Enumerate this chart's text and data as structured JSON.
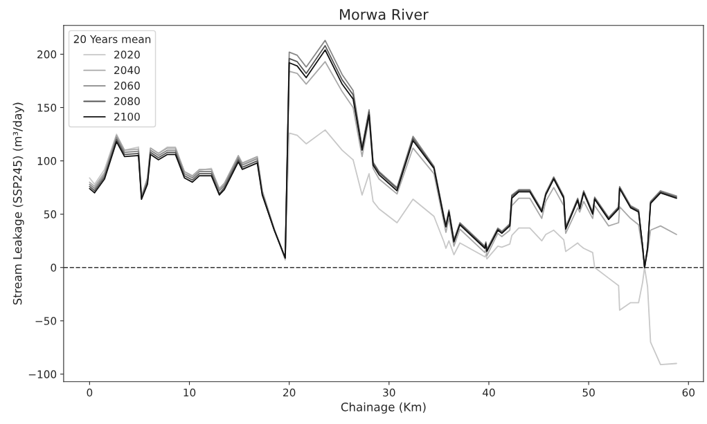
{
  "chart_data": {
    "type": "line",
    "title": "Morwa River",
    "xlabel": "Chainage (Km)",
    "ylabel": "Stream Leakage (SSP245) (m³/day)",
    "legend_title": "20 Years mean",
    "legend": "top left",
    "grid": false,
    "line_style": "solid",
    "x": [
      0,
      0.5,
      1.5,
      2.7,
      3.5,
      4.9,
      5.2,
      5.8,
      6.1,
      6.9,
      7.8,
      8.6,
      9.5,
      10.3,
      11,
      12.2,
      13,
      13.5,
      14.9,
      15.3,
      16.8,
      17.3,
      18.5,
      19.6,
      20,
      20.8,
      21.7,
      23.6,
      25.3,
      26.4,
      27.3,
      28,
      28.4,
      29,
      30.8,
      32.4,
      34.5,
      35.5,
      35.7,
      36,
      36.5,
      37.1,
      39.6,
      39.7,
      39.8,
      40.9,
      41.3,
      42.1,
      42.3,
      43,
      44.1,
      45.3,
      45.7,
      46.5,
      47.5,
      47.7,
      48.9,
      49.1,
      49.5,
      50.4,
      50.6,
      52,
      53,
      53.1,
      54.2,
      55,
      55.4,
      55.6,
      55.9,
      56.2,
      57.2,
      58.8
    ],
    "series": [
      {
        "name": "2020",
        "color": "#c8c8c8",
        "values": [
          84,
          78,
          92,
          125,
          110,
          113,
          66,
          84,
          112,
          107,
          113,
          113,
          90,
          85,
          91,
          93,
          72,
          78,
          104,
          97,
          103,
          72,
          36,
          7,
          126,
          124,
          116,
          129,
          110,
          101,
          68,
          88,
          62,
          55,
          42,
          64,
          48,
          24,
          18,
          25,
          12,
          23,
          10,
          12,
          8,
          20,
          19,
          22,
          30,
          37,
          37,
          25,
          31,
          35,
          26,
          15,
          23,
          21,
          18,
          14,
          0,
          -10,
          -17,
          -40,
          -33,
          -33,
          -14,
          0,
          -18,
          -70,
          -91,
          -90
        ]
      },
      {
        "name": "2040",
        "color": "#a8a8a8",
        "values": [
          80,
          76,
          89,
          124,
          110,
          111,
          67,
          84,
          112,
          107,
          112,
          112,
          90,
          86,
          92,
          92,
          74,
          79,
          105,
          98,
          104,
          72,
          36,
          8,
          184,
          182,
          172,
          193,
          165,
          150,
          104,
          140,
          93,
          83,
          69,
          112,
          88,
          42,
          33,
          46,
          20,
          36,
          14,
          18,
          11,
          32,
          29,
          35,
          58,
          65,
          65,
          46,
          62,
          75,
          58,
          32,
          56,
          52,
          62,
          46,
          58,
          39,
          42,
          57,
          46,
          40,
          16,
          0,
          15,
          35,
          39,
          31
        ]
      },
      {
        "name": "2060",
        "color": "#888888",
        "values": [
          78,
          74,
          87,
          122,
          108,
          109,
          66,
          82,
          110,
          105,
          110,
          110,
          88,
          84,
          90,
          90,
          72,
          77,
          103,
          96,
          102,
          70,
          36,
          9,
          202,
          199,
          188,
          213,
          181,
          166,
          113,
          148,
          99,
          90,
          75,
          123,
          95,
          48,
          40,
          54,
          26,
          42,
          20,
          24,
          17,
          37,
          34,
          41,
          68,
          73,
          73,
          54,
          70,
          85,
          67,
          38,
          65,
          57,
          72,
          52,
          66,
          47,
          57,
          76,
          58,
          54,
          20,
          0,
          19,
          62,
          72,
          67
        ]
      },
      {
        "name": "2080",
        "color": "#555555",
        "values": [
          76,
          72,
          85,
          120,
          106,
          107,
          65,
          80,
          108,
          103,
          108,
          108,
          86,
          82,
          88,
          88,
          69,
          75,
          101,
          94,
          100,
          69,
          35,
          9,
          196,
          193,
          182,
          208,
          176,
          162,
          112,
          146,
          98,
          89,
          74,
          121,
          94,
          47,
          39,
          53,
          25,
          41,
          19,
          23,
          16,
          36,
          33,
          40,
          67,
          72,
          72,
          53,
          69,
          84,
          66,
          37,
          64,
          56,
          71,
          51,
          65,
          46,
          56,
          75,
          57,
          53,
          20,
          0,
          18,
          61,
          71,
          66
        ]
      },
      {
        "name": "2100",
        "color": "#111111",
        "values": [
          74,
          70,
          83,
          118,
          104,
          105,
          64,
          78,
          106,
          101,
          106,
          106,
          84,
          80,
          86,
          86,
          68,
          73,
          99,
          92,
          98,
          68,
          35,
          9,
          192,
          189,
          178,
          204,
          172,
          158,
          110,
          143,
          96,
          87,
          72,
          119,
          93,
          46,
          38,
          52,
          24,
          40,
          18,
          22,
          15,
          35,
          32,
          39,
          65,
          71,
          71,
          52,
          68,
          83,
          65,
          36,
          63,
          55,
          70,
          50,
          64,
          45,
          55,
          74,
          56,
          52,
          20,
          0,
          18,
          60,
          70,
          65
        ]
      }
    ],
    "ref_lines": [
      {
        "axis": "y",
        "value": 0,
        "color": "#333333",
        "line_style": "dashed"
      }
    ],
    "xlim": [
      -2.6,
      61.5
    ],
    "ylim": [
      -107,
      227
    ],
    "xticks": [
      0,
      10,
      20,
      30,
      40,
      50,
      60
    ],
    "yticks": [
      -100,
      -50,
      0,
      50,
      100,
      150,
      200
    ]
  }
}
